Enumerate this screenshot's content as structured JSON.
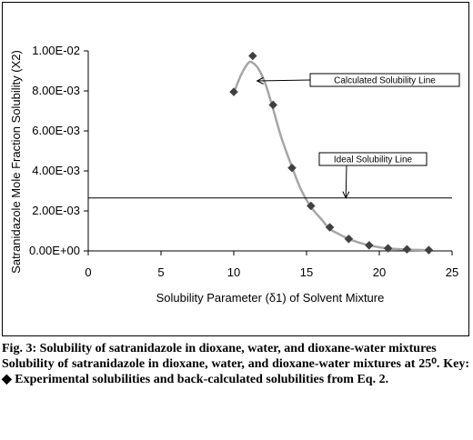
{
  "chart_data": {
    "type": "scatter",
    "xlabel": "Solubility Parameter (δ1) of Solvent Mixture",
    "ylabel": "Satranidazole Mole Fraction Solubility (X2)",
    "xlim": [
      0,
      25
    ],
    "ylim": [
      0,
      0.01
    ],
    "x_ticks": [
      "0",
      "5",
      "10",
      "15",
      "20",
      "25"
    ],
    "y_ticks": [
      "0.00E+00",
      "2.00E-03",
      "4.00E-03",
      "6.00E-03",
      "8.00E-03",
      "1.00E-02"
    ],
    "grid": false,
    "series": [
      {
        "kind": "markers",
        "marker": "diamond",
        "color": "#404040",
        "x": [
          10.0,
          11.3,
          12.7,
          14.0,
          15.3,
          16.6,
          17.9,
          19.3,
          20.6,
          21.9,
          23.4
        ],
        "y": [
          0.00795,
          0.00975,
          0.0073,
          0.00415,
          0.00225,
          0.00118,
          0.0006,
          0.00028,
          0.00013,
          8e-05,
          4e-05
        ]
      },
      {
        "kind": "smooth-line",
        "color": "#a6a6a6",
        "x": [
          10.0,
          10.5,
          11.0,
          11.3,
          11.7,
          12.2,
          12.7,
          13.3,
          14.0,
          14.6,
          15.3,
          16.0,
          16.6,
          17.2,
          17.9,
          18.6,
          19.3,
          20.0,
          20.6,
          21.3,
          21.9,
          22.6,
          23.4
        ],
        "y": [
          0.0079,
          0.0088,
          0.0094,
          0.0094,
          0.0091,
          0.0083,
          0.0071,
          0.0056,
          0.0042,
          0.0031,
          0.0022,
          0.0016,
          0.0011,
          0.00085,
          0.0006,
          0.00042,
          0.00028,
          0.00018,
          0.00012,
          9e-05,
          7e-05,
          5e-05,
          4e-05
        ]
      },
      {
        "kind": "hline",
        "color": "#000000",
        "y": 0.00265
      }
    ],
    "annotations": [
      {
        "text": "Calculated Solubility Line",
        "target_x": 11.6,
        "target_y": 0.0085
      },
      {
        "text": "Ideal Solubility Line",
        "target_x": 17.7,
        "target_y": 0.00265
      }
    ]
  },
  "caption": {
    "title": "Fig. 3: Solubility of satranidazole in dioxane, water, and dioxane-water mixtures",
    "body": "Solubility of satranidazole in dioxane, water, and dioxane-water mixtures at 25⁰. Key: ◆ Experimental solubilities and back-calculated solubilities from Eq. 2."
  }
}
